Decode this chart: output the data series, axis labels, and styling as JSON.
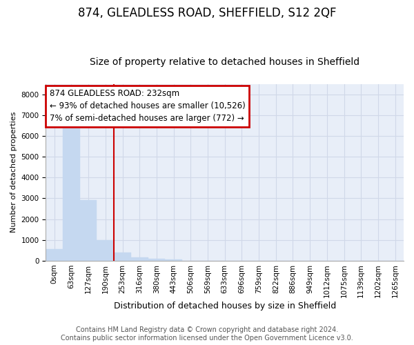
{
  "title": "874, GLEADLESS ROAD, SHEFFIELD, S12 2QF",
  "subtitle": "Size of property relative to detached houses in Sheffield",
  "xlabel": "Distribution of detached houses by size in Sheffield",
  "ylabel": "Number of detached properties",
  "categories": [
    "0sqm",
    "63sqm",
    "127sqm",
    "190sqm",
    "253sqm",
    "316sqm",
    "380sqm",
    "443sqm",
    "506sqm",
    "569sqm",
    "633sqm",
    "696sqm",
    "759sqm",
    "822sqm",
    "886sqm",
    "949sqm",
    "1012sqm",
    "1075sqm",
    "1139sqm",
    "1202sqm",
    "1265sqm"
  ],
  "values": [
    560,
    6380,
    2920,
    990,
    390,
    175,
    85,
    55,
    5,
    0,
    0,
    0,
    0,
    0,
    0,
    0,
    0,
    0,
    0,
    0,
    0
  ],
  "bar_color": "#c5d8f0",
  "bar_edge_color": "#c5d8f0",
  "vline_x": 3.5,
  "vline_color": "#cc0000",
  "annotation_text": "874 GLEADLESS ROAD: 232sqm\n← 93% of detached houses are smaller (10,526)\n7% of semi-detached houses are larger (772) →",
  "annotation_box_color": "#cc0000",
  "ylim": [
    0,
    8500
  ],
  "yticks": [
    0,
    1000,
    2000,
    3000,
    4000,
    5000,
    6000,
    7000,
    8000
  ],
  "grid_color": "#d0d8e8",
  "bg_color": "#e8eef8",
  "footnote": "Contains HM Land Registry data © Crown copyright and database right 2024.\nContains public sector information licensed under the Open Government Licence v3.0.",
  "title_fontsize": 12,
  "subtitle_fontsize": 10,
  "xlabel_fontsize": 9,
  "ylabel_fontsize": 8,
  "tick_fontsize": 7.5,
  "annotation_fontsize": 8.5,
  "footnote_fontsize": 7
}
